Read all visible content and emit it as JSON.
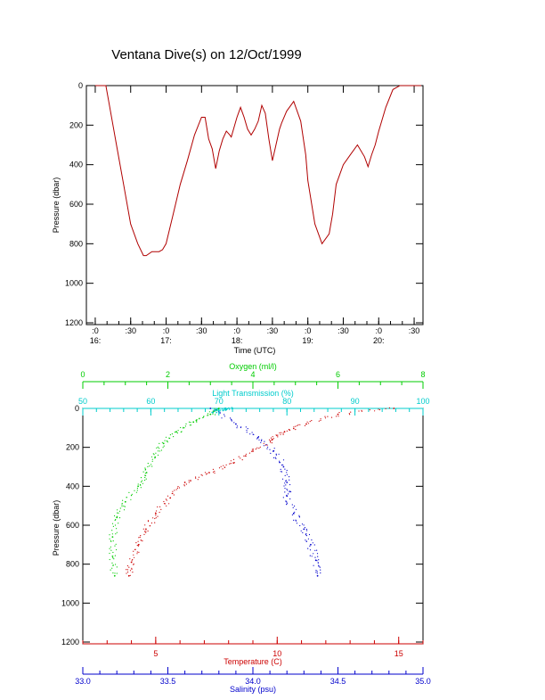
{
  "chart_data": [
    {
      "type": "line",
      "title": "Ventana Dive(s) on 12/Oct/1999",
      "xlabel": "Time (UTC)",
      "ylabel": "Pressure (dbar)",
      "ylim": [
        1200,
        0
      ],
      "yticks": [
        "0",
        "200",
        "400",
        "600",
        "800",
        "1000",
        "1200"
      ],
      "xtick_minutes": [
        ":0",
        ":30",
        ":0",
        ":30",
        ":0",
        ":30",
        ":0",
        ":30",
        ":0",
        ":30"
      ],
      "xtick_hours": [
        "16:",
        "17:",
        "18:",
        "19:",
        "20:"
      ],
      "line_color": "#b00000",
      "series": [
        {
          "x": [
            16.0,
            16.05,
            16.15,
            16.2,
            16.3,
            16.4,
            16.5,
            16.6,
            16.68,
            16.72,
            16.8,
            16.9,
            16.95,
            17.0,
            17.1,
            17.2,
            17.3,
            17.4,
            17.5,
            17.55,
            17.6,
            17.65,
            17.7,
            17.75,
            17.8,
            17.85,
            17.9,
            17.92,
            18.0,
            18.05,
            18.1,
            18.15,
            18.2,
            18.25,
            18.3,
            18.35,
            18.4,
            18.45,
            18.5,
            18.55,
            18.6,
            18.63,
            18.7,
            18.8,
            18.9,
            18.97,
            19.0,
            19.1,
            19.2,
            19.3,
            19.35,
            19.4,
            19.5,
            19.6,
            19.7,
            19.8,
            19.85,
            19.9,
            19.95,
            20.0,
            20.1,
            20.2,
            20.3,
            20.4,
            20.45,
            20.5,
            20.6
          ],
          "y": [
            0,
            0,
            0,
            100,
            300,
            500,
            700,
            800,
            860,
            860,
            840,
            840,
            830,
            800,
            650,
            500,
            380,
            250,
            160,
            160,
            270,
            320,
            420,
            330,
            270,
            230,
            250,
            260,
            160,
            110,
            160,
            220,
            250,
            220,
            180,
            100,
            140,
            270,
            380,
            300,
            220,
            190,
            130,
            80,
            180,
            350,
            480,
            700,
            800,
            750,
            650,
            500,
            400,
            350,
            300,
            360,
            410,
            350,
            300,
            230,
            110,
            20,
            0,
            0,
            0,
            0,
            0
          ]
        }
      ]
    },
    {
      "type": "scatter",
      "ylabel": "Pressure (dbar)",
      "ylim": [
        1200,
        0
      ],
      "yticks": [
        "0",
        "200",
        "400",
        "600",
        "800",
        "1000",
        "1200"
      ],
      "axes": {
        "oxygen": {
          "label": "Oxygen (ml/l)",
          "range": [
            0,
            8
          ],
          "ticks": [
            "0",
            "2",
            "4",
            "6",
            "8"
          ],
          "color": "#00cc00"
        },
        "light": {
          "label": "Light Transmission (%)",
          "range": [
            50,
            100
          ],
          "ticks": [
            "50",
            "60",
            "70",
            "80",
            "90",
            "100"
          ],
          "color": "#00cccc"
        },
        "temperature": {
          "label": "Temperature (C)",
          "range": [
            2,
            16
          ],
          "ticks": [
            "5",
            "10",
            "15"
          ],
          "color": "#cc0000"
        },
        "salinity": {
          "label": "Salinity (psu)",
          "range": [
            33.0,
            35.0
          ],
          "ticks": [
            "33.0",
            "33.5",
            "34.0",
            "34.5",
            "35.0"
          ],
          "color": "#0000cc"
        }
      },
      "series": [
        {
          "axis": "oxygen",
          "x": [
            3.2,
            3.0,
            2.6,
            2.2,
            1.9,
            1.7,
            1.5,
            1.3,
            1.0,
            0.8,
            0.7,
            0.7,
            0.75
          ],
          "y": [
            0,
            30,
            70,
            120,
            180,
            250,
            330,
            400,
            480,
            560,
            660,
            760,
            860
          ]
        },
        {
          "axis": "temperature",
          "x": [
            14.8,
            12.5,
            11.2,
            10.3,
            9.8,
            9.0,
            8.2,
            7.2,
            6.2,
            5.6,
            5.0,
            4.6,
            4.3,
            4.0,
            3.9
          ],
          "y": [
            0,
            30,
            80,
            120,
            160,
            220,
            280,
            330,
            380,
            460,
            540,
            620,
            700,
            790,
            860
          ]
        },
        {
          "axis": "salinity",
          "x": [
            33.75,
            33.9,
            34.03,
            34.12,
            34.18,
            34.2,
            34.2,
            34.24,
            34.3,
            34.34,
            34.37,
            34.38
          ],
          "y": [
            0,
            80,
            150,
            220,
            300,
            380,
            450,
            540,
            620,
            700,
            780,
            860
          ]
        },
        {
          "axis": "light",
          "x": [
            72,
            71,
            70,
            69
          ],
          "y": [
            0,
            5,
            10,
            20
          ]
        }
      ]
    }
  ]
}
